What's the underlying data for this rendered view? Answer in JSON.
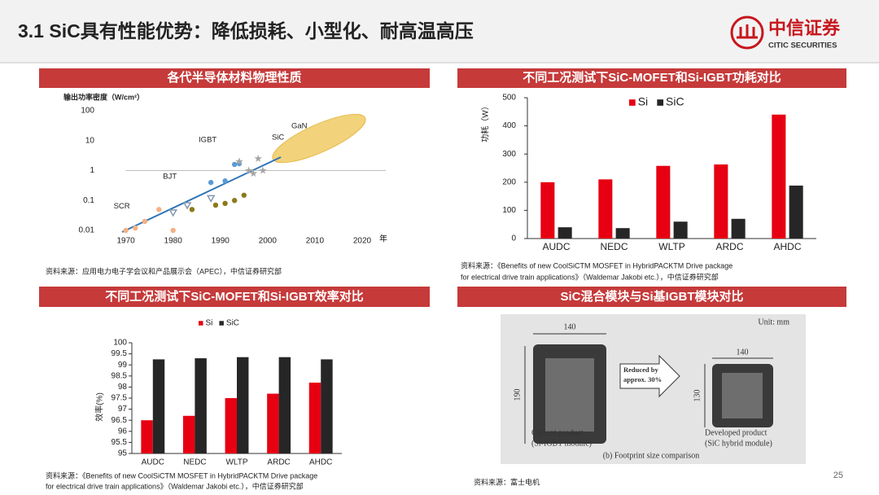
{
  "header": {
    "title": "3.1 SiC具有性能优势：降低损耗、小型化、耐高温高压",
    "logo_cn": "中信证券",
    "logo_en": "CITIC SECURITIES"
  },
  "panels": [
    {
      "heading": "各代半导体材料物理性质",
      "source": [
        "资料来源：应用电力电子学会议和产品展示会（APEC），中信证券研究部"
      ]
    },
    {
      "heading": "不同工况测试下SiC-MOFET和Si-IGBT功耗对比",
      "source": [
        "资料来源：《Benefits of new CoolSiCTM MOSFET in HybridPACKTM Drive package",
        "for electrical drive train applications》（Waldemar Jakobi etc.），中信证券研究部"
      ]
    },
    {
      "heading": "不同工况测试下SiC-MOFET和Si-IGBT效率对比",
      "source": [
        "资料来源：《Benefits of new CoolSiCTM MOSFET in HybridPACKTM Drive package",
        "for electrical drive train applications》（Waldemar Jakobi etc.），中信证券研究部"
      ]
    },
    {
      "heading": "SiC混合模块与Si基IGBT模块对比",
      "source": [
        "资料来源：富士电机"
      ]
    }
  ],
  "chart_data": [
    {
      "type": "scatter",
      "y_title": "输出功率密度（W/cm²）",
      "x_unit": "年",
      "log_y": true,
      "xlim": [
        1968,
        2025
      ],
      "ylim": [
        0.01,
        100
      ],
      "xticks": [
        1970,
        1980,
        1990,
        2000,
        2010,
        2020
      ],
      "yticks": [
        0.01,
        0.1,
        1,
        10,
        100
      ],
      "hline": 1,
      "annotations": [
        "GaN"
      ],
      "series": [
        {
          "name": "SCR",
          "color": "#f4b183",
          "marker": "circle",
          "x": [
            1970,
            1972,
            1974,
            1977,
            1980
          ],
          "values": [
            0.01,
            0.012,
            0.02,
            0.05,
            0.01
          ]
        },
        {
          "name": "BJT",
          "color": "#8497b0",
          "marker": "triangle",
          "x": [
            1980,
            1983,
            1988
          ],
          "values": [
            0.04,
            0.07,
            0.12
          ]
        },
        {
          "color": "#8c7a1a",
          "marker": "circle",
          "x": [
            1984,
            1989,
            1991,
            1993,
            1995
          ],
          "values": [
            0.05,
            0.07,
            0.08,
            0.1,
            0.15
          ]
        },
        {
          "name": "IGBT",
          "color": "#5b9bd5",
          "marker": "circle",
          "x": [
            1988,
            1991,
            1993,
            1994
          ],
          "values": [
            0.4,
            0.45,
            1.6,
            1.7
          ]
        },
        {
          "name": "SiC",
          "color": "#a6a6a6",
          "marker": "star",
          "x": [
            1994,
            1996,
            1997,
            1998,
            1999
          ],
          "values": [
            2,
            1,
            0.8,
            2.5,
            1
          ]
        }
      ]
    },
    {
      "type": "bar",
      "y_title": "功耗（W）",
      "categories": [
        "AUDC",
        "NEDC",
        "WLTP",
        "ARDC",
        "AHDC"
      ],
      "ylim": [
        0,
        500
      ],
      "yticks": [
        0,
        100,
        200,
        300,
        400,
        500
      ],
      "series": [
        {
          "name": "Si",
          "color": "#e60012",
          "values": [
            200,
            210,
            258,
            263,
            440
          ]
        },
        {
          "name": "SiC",
          "color": "#262626",
          "values": [
            40,
            37,
            60,
            70,
            188
          ]
        }
      ]
    },
    {
      "type": "bar",
      "y_title": "效率(%)",
      "categories": [
        "AUDC",
        "NEDC",
        "WLTP",
        "ARDC",
        "AHDC"
      ],
      "ylim": [
        95,
        100
      ],
      "yticks": [
        95,
        95.5,
        96,
        96.5,
        97,
        97.5,
        98,
        98.5,
        99,
        99.5,
        100
      ],
      "series": [
        {
          "name": "Si",
          "color": "#e60012",
          "values": [
            96.5,
            96.7,
            97.5,
            97.7,
            98.2
          ]
        },
        {
          "name": "SiC",
          "color": "#262626",
          "values": [
            99.25,
            99.3,
            99.35,
            99.35,
            99.25
          ]
        }
      ]
    }
  ],
  "figure": {
    "unit": "Unit: mm",
    "left_width": "140",
    "left_height": "190",
    "arrow": [
      "Reduced by",
      "approx. 30%"
    ],
    "right_width": "140",
    "right_height": "130",
    "left_caption": [
      "Current product",
      "(Si-IGBT module)"
    ],
    "right_caption": [
      "Developed product",
      "(SiC hybrid module)"
    ],
    "caption": "(b) Footprint size comparison"
  },
  "page_number": 25
}
